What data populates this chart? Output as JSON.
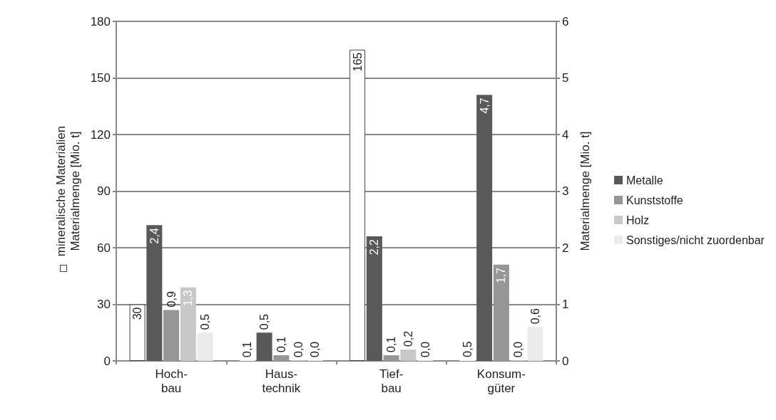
{
  "chart_data": {
    "type": "bar",
    "categories": [
      "Hoch-\nbau",
      "Haus-\ntechnik",
      "Tief-\nbau",
      "Konsum-\ngüter"
    ],
    "ylabel": "mineralische Materialien\nMaterialmenge [Mio. t]",
    "y2label": "Materialmenge [Mio. t]",
    "series": [
      {
        "color": "#ffffff",
        "values": [
          30,
          0.1,
          165,
          0.5
        ],
        "value_labels": [
          "30",
          "0,1",
          "165",
          "0,5"
        ]
      },
      {
        "name": "Metalle",
        "color": "#595959",
        "axis": "y2",
        "values": [
          2.4,
          0.5,
          2.2,
          4.7
        ],
        "value_labels": [
          "2,4",
          "0,5",
          "2,2",
          "4,7"
        ]
      },
      {
        "name": "Kunststoffe",
        "color": "#969696",
        "axis": "y2",
        "values": [
          0.9,
          0.1,
          0.1,
          1.7
        ],
        "value_labels": [
          "0,9",
          "0,1",
          "0,1",
          "1,7"
        ]
      },
      {
        "name": "Holz",
        "color": "#c8c8c8",
        "axis": "y2",
        "values": [
          1.3,
          0.0,
          0.2,
          0.0
        ],
        "value_labels": [
          "1,3",
          "0,0",
          "0,2",
          "0,0"
        ]
      },
      {
        "name": "Sonstiges/nicht zuordenbar",
        "color": "#ebebeb",
        "axis": "y2",
        "values": [
          0.5,
          0.0,
          0.0,
          0.6
        ],
        "value_labels": [
          "0,5",
          "0,0",
          "0,0",
          "0,6"
        ]
      }
    ],
    "ylim": [
      0,
      180
    ],
    "yticks": [
      0,
      30,
      60,
      90,
      120,
      150,
      180
    ],
    "y2lim": [
      0,
      6
    ],
    "y2ticks": [
      0,
      1,
      2,
      3,
      4,
      5,
      6
    ],
    "grid": "y",
    "legend": "right"
  }
}
